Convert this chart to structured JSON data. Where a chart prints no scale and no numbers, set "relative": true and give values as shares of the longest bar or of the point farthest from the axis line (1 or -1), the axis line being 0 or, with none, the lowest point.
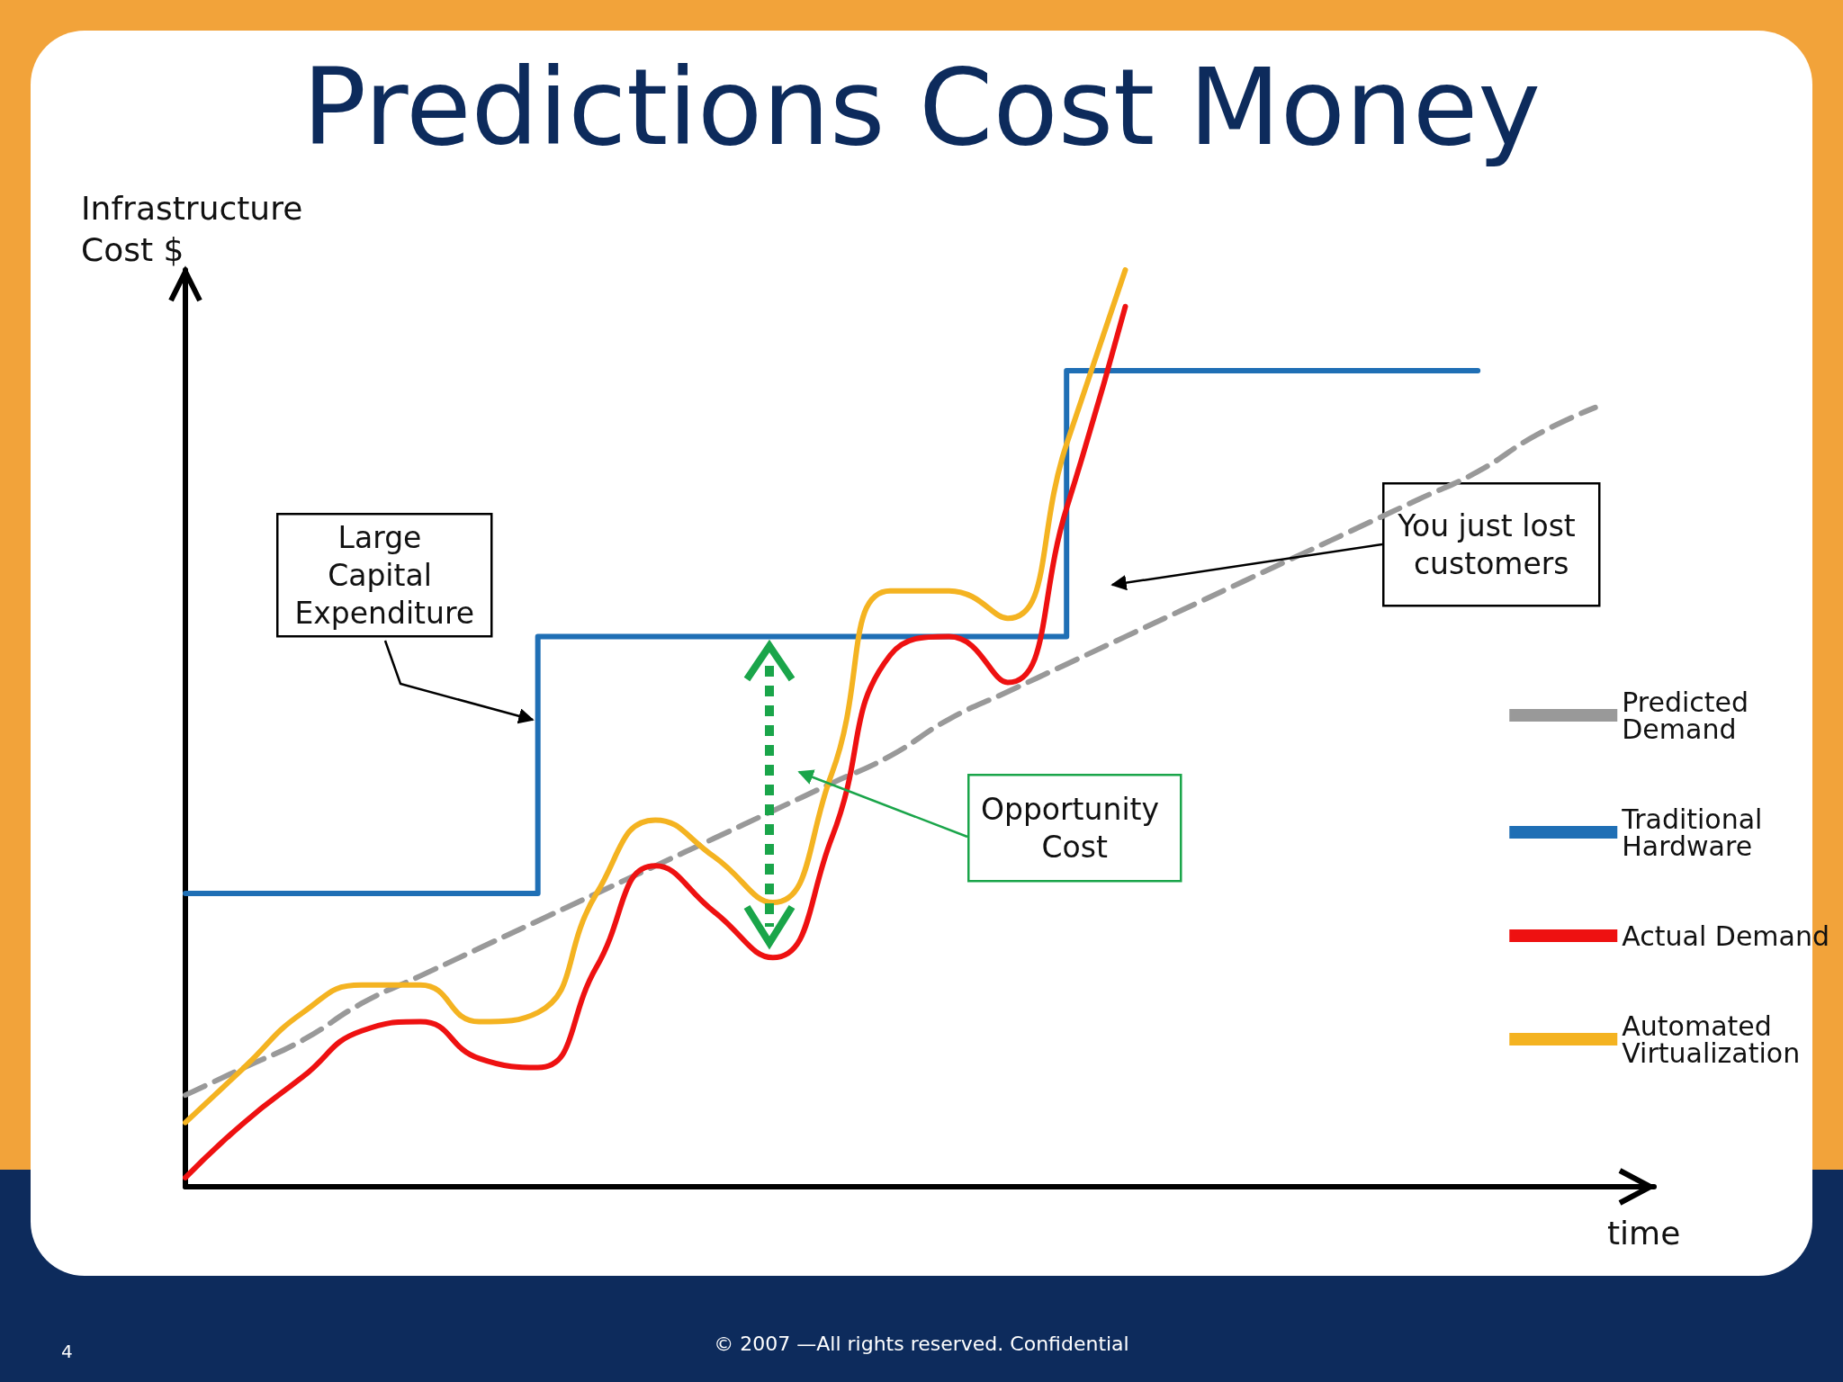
{
  "chart_data": {
    "type": "line",
    "title": "Predictions Cost Money",
    "xlabel": "time",
    "ylabel": "Infrastructure Cost $",
    "relative": true,
    "categories": [
      null,
      null,
      null,
      null,
      null,
      null,
      null,
      null,
      null,
      null,
      null,
      null,
      null,
      null,
      null,
      null,
      null,
      null,
      null,
      null,
      null,
      null,
      null,
      null,
      null,
      null
    ],
    "series": [
      {
        "name": "Predicted Demand",
        "color": "#999999",
        "line_style": "dashed",
        "values": [
          0.1,
          0.13,
          0.16,
          0.2,
          0.23,
          0.26,
          0.29,
          0.32,
          0.35,
          0.38,
          0.41,
          0.44,
          0.47,
          0.51,
          0.54,
          0.57,
          0.6,
          0.63,
          0.66,
          0.69,
          0.72,
          0.75,
          0.78,
          0.82,
          0.85,
          null
        ]
      },
      {
        "name": "Traditional Hardware",
        "color": "#1f6fb5",
        "type": "step",
        "values": [
          0.32,
          0.32,
          0.32,
          0.32,
          0.32,
          0.32,
          0.32,
          0.6,
          0.6,
          0.6,
          0.6,
          0.6,
          0.6,
          0.6,
          0.6,
          0.6,
          0.89,
          0.89,
          0.89,
          0.89,
          0.89,
          0.89,
          0.89,
          null,
          null,
          null
        ]
      },
      {
        "name": "Actual Demand",
        "color": "#ee1111",
        "values": [
          0.01,
          0.07,
          0.12,
          0.17,
          0.18,
          0.14,
          0.13,
          0.24,
          0.35,
          0.3,
          0.25,
          0.38,
          0.58,
          0.6,
          0.55,
          0.74,
          0.96,
          null,
          null,
          null,
          null,
          null,
          null,
          null,
          null,
          null
        ]
      },
      {
        "name": "Automated Virtualization",
        "color": "#f4b321",
        "values": [
          0.07,
          0.13,
          0.19,
          0.22,
          0.22,
          0.18,
          0.19,
          0.32,
          0.4,
          0.36,
          0.31,
          0.45,
          0.65,
          0.65,
          0.62,
          0.81,
          1.0,
          null,
          null,
          null,
          null,
          null,
          null,
          null,
          null,
          null
        ]
      }
    ],
    "legend": "right",
    "grid": false,
    "annotations": [
      "Large Capital Expenditure",
      "Opportunity Cost",
      "You just lost customers",
      "© 2007 —All rights reserved. Confidential",
      "4"
    ]
  }
}
